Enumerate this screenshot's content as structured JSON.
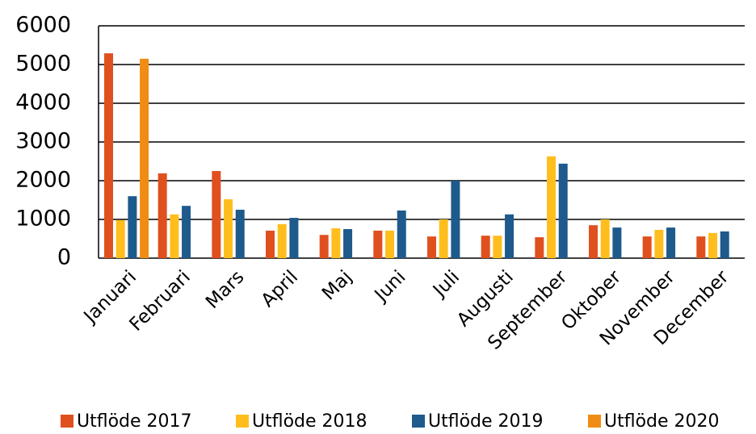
{
  "chart_data": {
    "type": "bar",
    "categories": [
      "Januari",
      "Februari",
      "Mars",
      "April",
      "Maj",
      "Juni",
      "Juli",
      "Augusti",
      "September",
      "Oktober",
      "November",
      "December"
    ],
    "series": [
      {
        "name": "Utflöde 2017",
        "color": "#e0501e",
        "values": [
          5290,
          2190,
          2250,
          710,
          600,
          710,
          560,
          580,
          540,
          850,
          560,
          560
        ]
      },
      {
        "name": "Utflöde 2018",
        "color": "#ffbe1e",
        "values": [
          980,
          1130,
          1520,
          880,
          770,
          710,
          1000,
          580,
          2630,
          1000,
          730,
          650
        ]
      },
      {
        "name": "Utflöde 2019",
        "color": "#1e5a8c",
        "values": [
          1600,
          1350,
          1250,
          1040,
          750,
          1230,
          2000,
          1130,
          2440,
          790,
          790,
          690
        ]
      },
      {
        "name": "Utflöde 2020",
        "color": "#f08c14",
        "values": [
          5150,
          null,
          null,
          null,
          null,
          null,
          null,
          null,
          null,
          null,
          null,
          null
        ]
      }
    ],
    "ylim": [
      0,
      6000
    ],
    "yticks": [
      0,
      1000,
      2000,
      3000,
      4000,
      5000,
      6000
    ],
    "grid": true,
    "legend": "bottom"
  }
}
